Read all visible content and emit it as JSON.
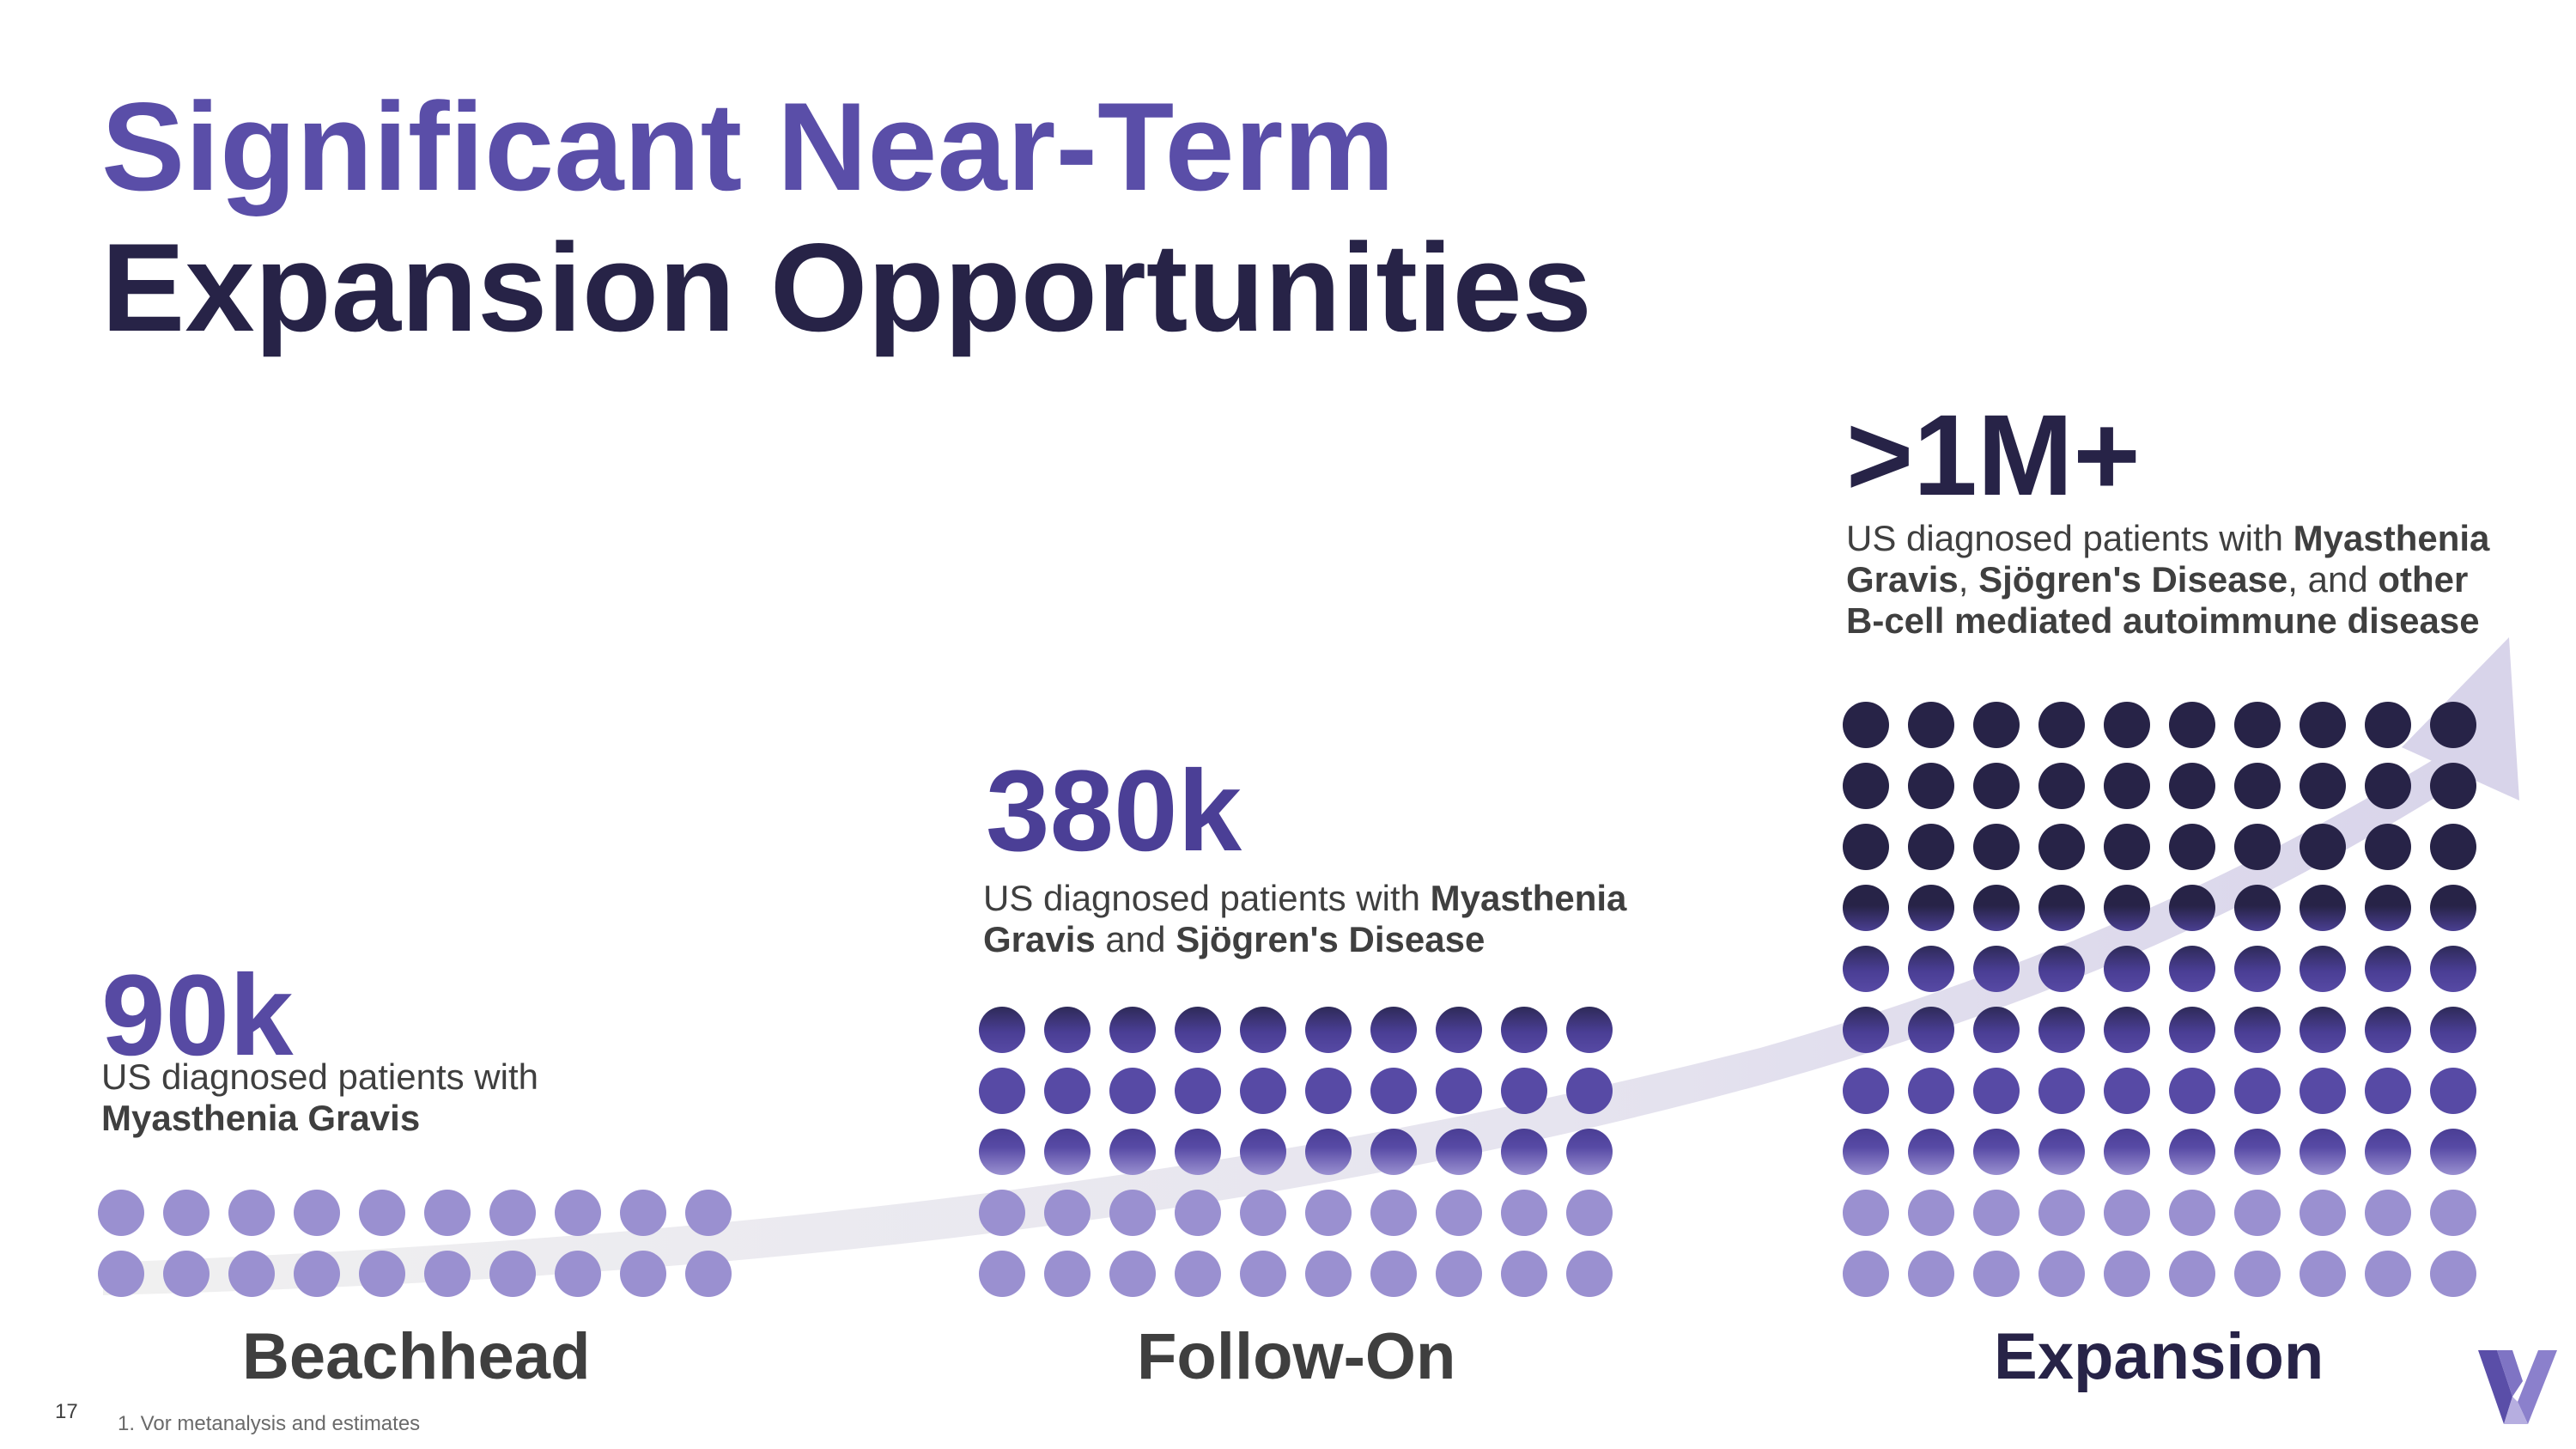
{
  "title": {
    "line1": "Significant Near-Term",
    "line2": "Expansion Opportunities"
  },
  "stages": [
    {
      "value": "90k",
      "desc_parts": [
        {
          "text": "US diagnosed patients with",
          "bold": false,
          "br": true
        },
        {
          "text": "Myasthenia Gravis",
          "bold": true
        }
      ],
      "label": "Beachhead",
      "rows": 2
    },
    {
      "value": "380k",
      "desc_parts": [
        {
          "text": "US diagnosed patients with ",
          "bold": false
        },
        {
          "text": "Myasthenia",
          "bold": true,
          "br": true
        },
        {
          "text": "Gravis",
          "bold": true
        },
        {
          "text": " and ",
          "bold": false
        },
        {
          "text": "Sjögren's Disease",
          "bold": true
        }
      ],
      "label": "Follow-On",
      "rows": 5
    },
    {
      "value": ">1M+",
      "desc_parts": [
        {
          "text": "US diagnosed patients with ",
          "bold": false
        },
        {
          "text": "Myasthenia",
          "bold": true,
          "br": true
        },
        {
          "text": "Gravis",
          "bold": true
        },
        {
          "text": ", ",
          "bold": false
        },
        {
          "text": "Sjögren's Disease",
          "bold": true
        },
        {
          "text": ", and ",
          "bold": false
        },
        {
          "text": "other",
          "bold": true,
          "br": true
        },
        {
          "text": "B-cell mediated autoimmune disease",
          "bold": true
        }
      ],
      "label": "Expansion",
      "rows": 10
    }
  ],
  "footer": {
    "page_number": "17",
    "footnote": "1. Vor metanalysis and estimates"
  },
  "colors": {
    "accent_purple": "#5a4ea8",
    "dark_navy": "#272347",
    "light_dot": "#9a90d0",
    "mid_dot": "#574aa5",
    "text_gray": "#3f3f3f",
    "arrow": "#e9e8f0"
  },
  "icons": {
    "logo": "vor-logo-icon"
  }
}
